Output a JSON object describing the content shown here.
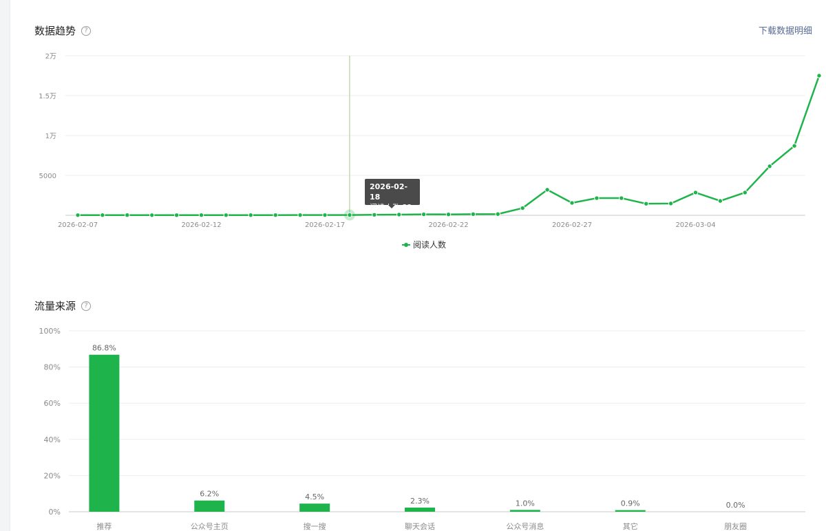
{
  "trend_section": {
    "title": "数据趋势",
    "help_icon": "question-circle-icon",
    "download_label": "下载数据明细",
    "tooltip": {
      "date": "2026-02-18",
      "label": "阅读人数",
      "value": "32"
    },
    "legend_label": "阅读人数"
  },
  "source_section": {
    "title": "流量来源",
    "help_icon": "question-circle-icon"
  },
  "colors": {
    "series": "#1fb44b",
    "link": "#576b95",
    "grid": "#ededed",
    "cursor": "#c5d9b0"
  },
  "chart_data": [
    {
      "type": "line",
      "title": "数据趋势",
      "x_tick_labels": [
        "2026-02-07",
        "2026-02-12",
        "2026-02-17",
        "2026-02-22",
        "2026-02-27",
        "2026-03-04"
      ],
      "y_tick_labels": [
        "2万",
        "1.5万",
        "1万",
        "5000"
      ],
      "ylim": [
        0,
        20000
      ],
      "grid": true,
      "legend": "bottom-center",
      "series": [
        {
          "name": "阅读人数",
          "x": [
            "2026-02-07",
            "2026-02-08",
            "2026-02-09",
            "2026-02-10",
            "2026-02-11",
            "2026-02-12",
            "2026-02-13",
            "2026-02-14",
            "2026-02-15",
            "2026-02-16",
            "2026-02-17",
            "2026-02-18",
            "2026-02-19",
            "2026-02-20",
            "2026-02-21",
            "2026-02-22",
            "2026-02-23",
            "2026-02-24",
            "2026-02-25",
            "2026-02-26",
            "2026-02-27",
            "2026-02-28",
            "2026-03-01",
            "2026-03-02",
            "2026-03-03",
            "2026-03-04",
            "2026-03-05",
            "2026-03-06",
            "2026-03-07",
            "2026-03-08",
            "2026-03-09"
          ],
          "values": [
            20,
            22,
            25,
            20,
            18,
            24,
            20,
            22,
            26,
            28,
            30,
            32,
            60,
            90,
            120,
            110,
            140,
            150,
            900,
            3200,
            1550,
            2150,
            2150,
            1450,
            1480,
            2850,
            1800,
            2850,
            6150,
            8700,
            17500
          ]
        }
      ]
    },
    {
      "type": "bar",
      "title": "流量来源",
      "categories": [
        "推荐",
        "公众号主页",
        "搜一搜",
        "聊天会话",
        "公众号消息",
        "其它",
        "朋友圈"
      ],
      "values": [
        86.8,
        6.2,
        4.5,
        2.3,
        1.0,
        0.9,
        0.0
      ],
      "value_labels": [
        "86.8%",
        "6.2%",
        "4.5%",
        "2.3%",
        "1.0%",
        "0.9%",
        "0.0%"
      ],
      "y_tick_labels": [
        "100%",
        "80%",
        "60%",
        "40%",
        "20%",
        "0%"
      ],
      "ylim": [
        0,
        100
      ],
      "grid": true
    }
  ]
}
